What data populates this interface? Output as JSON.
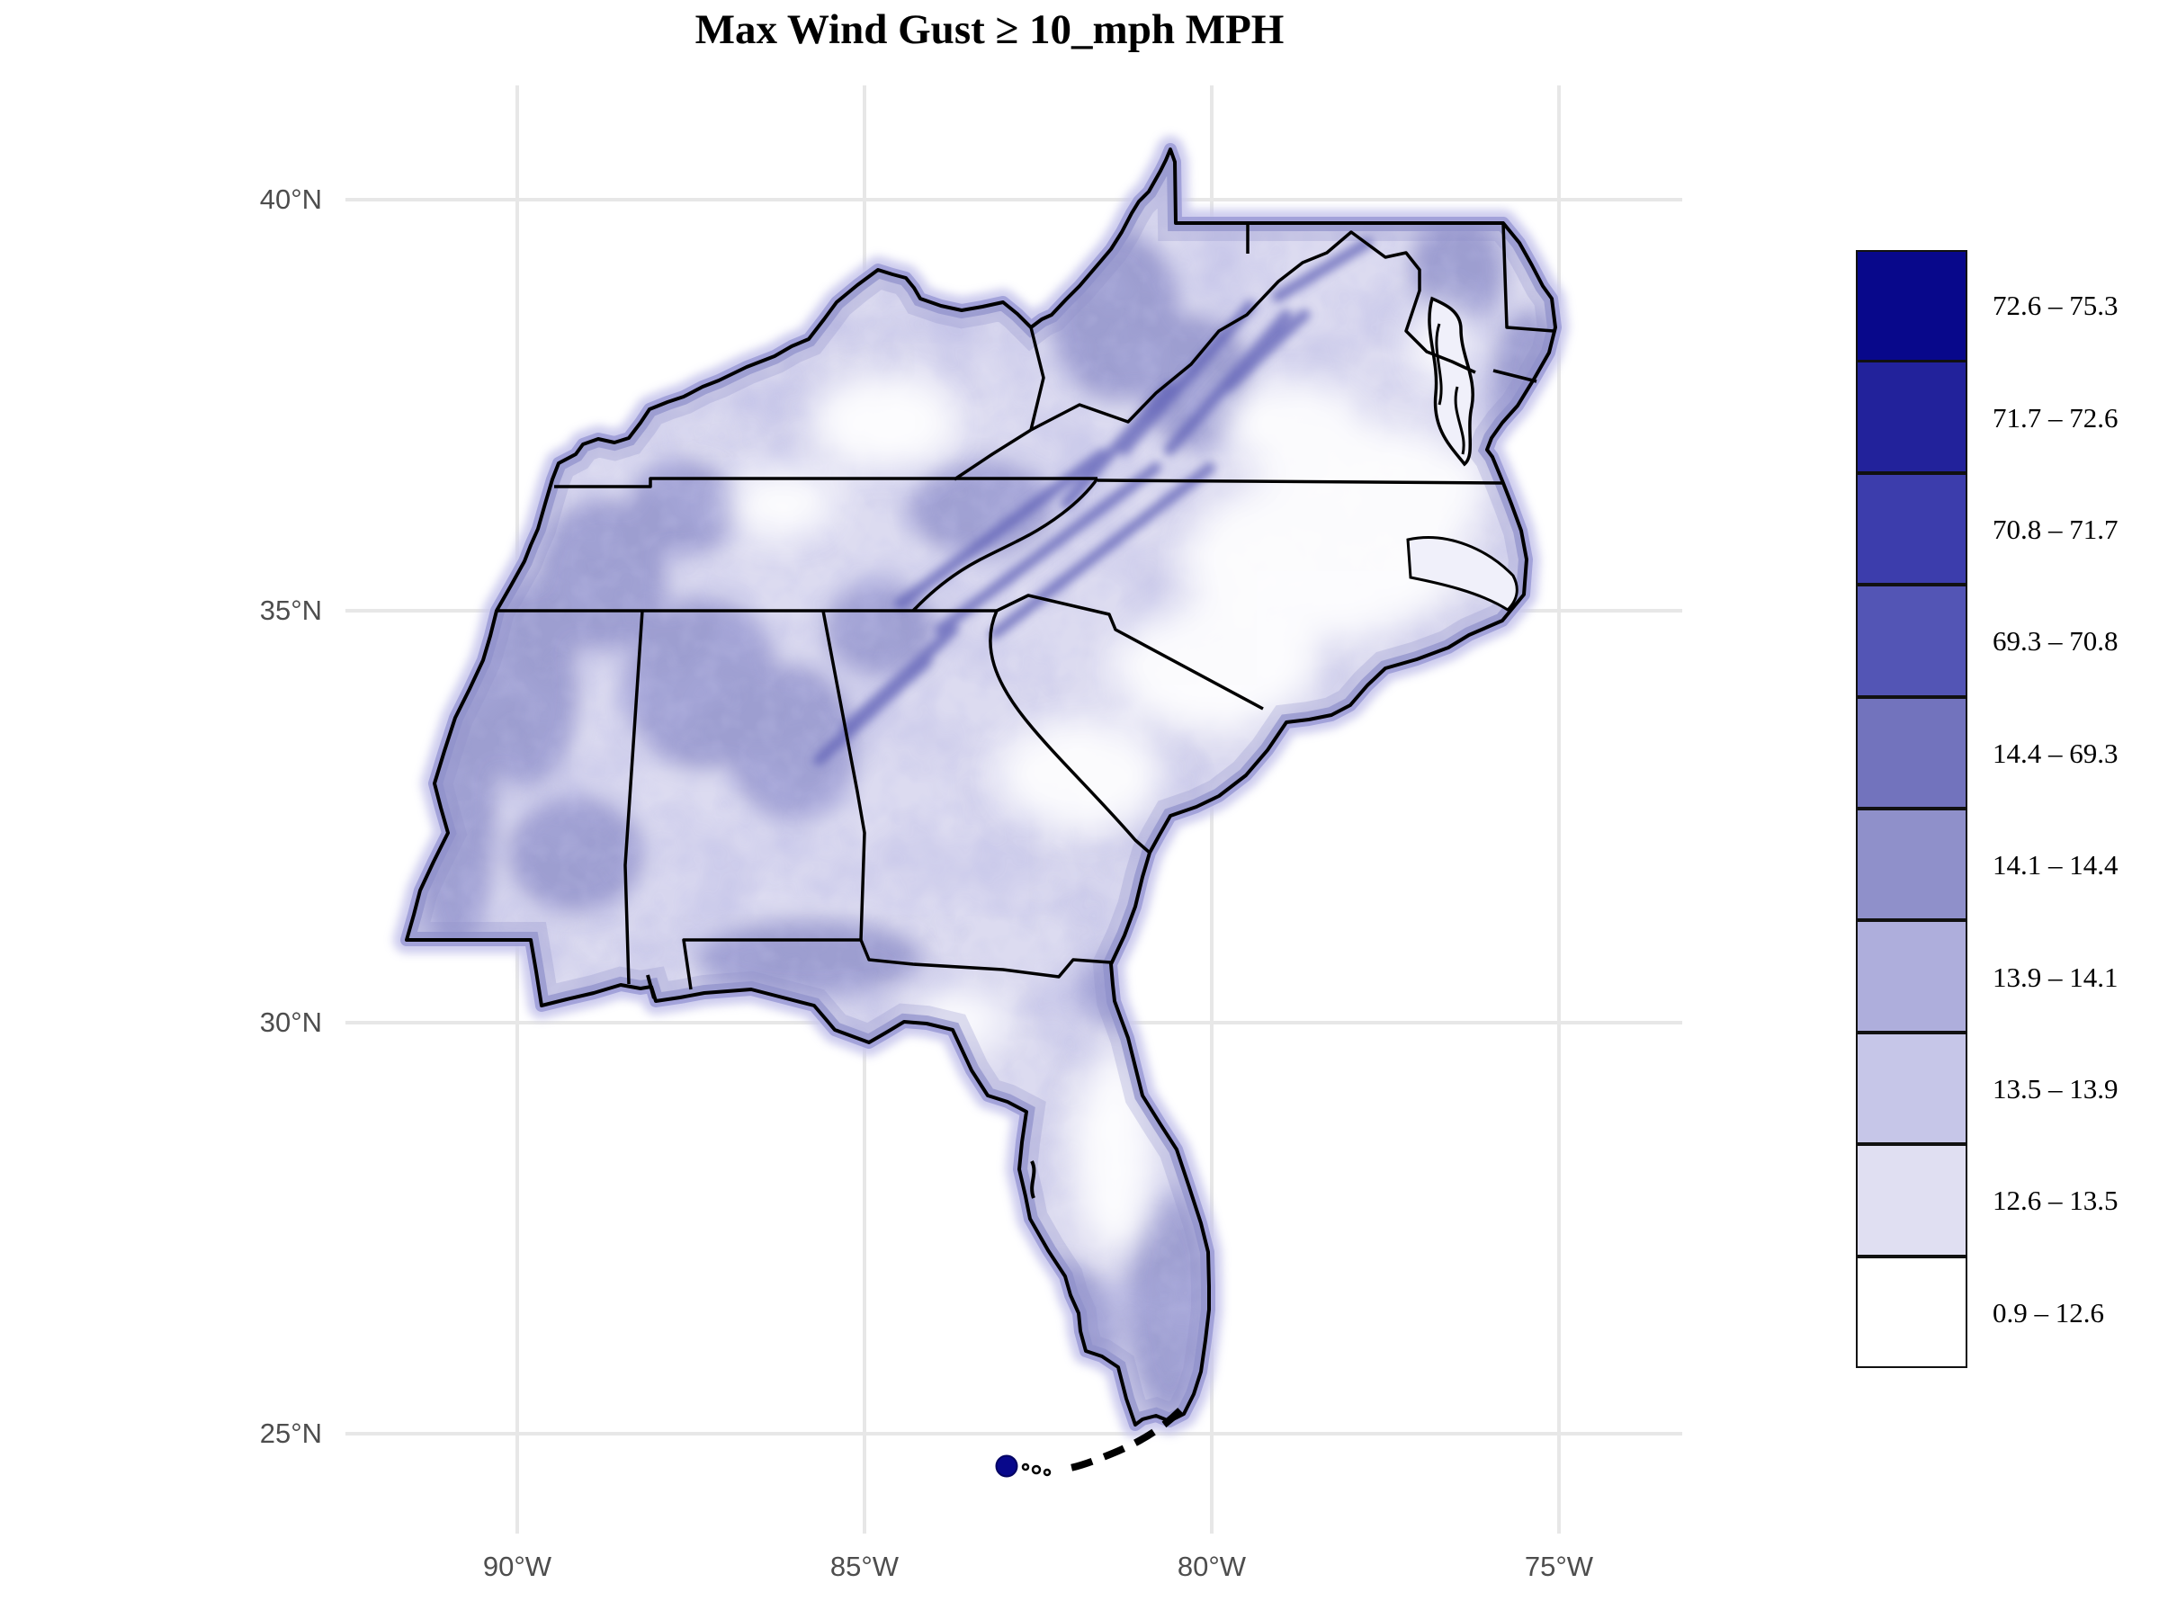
{
  "title": "Max Wind Gust ≥ 10_mph MPH",
  "axes": {
    "x_ticks": [
      {
        "label": "90°W",
        "px": 575
      },
      {
        "label": "85°W",
        "px": 961
      },
      {
        "label": "80°W",
        "px": 1347
      },
      {
        "label": "75°W",
        "px": 1733
      }
    ],
    "y_ticks": [
      {
        "label": "40°N",
        "px": 222
      },
      {
        "label": "35°N",
        "px": 679
      },
      {
        "label": "30°N",
        "px": 1137
      },
      {
        "label": "25°N",
        "px": 1594
      }
    ]
  },
  "legend": {
    "entries": [
      {
        "label": "72.6 – 75.3",
        "color": "#08088B"
      },
      {
        "label": "71.7 – 72.6",
        "color": "#22229B"
      },
      {
        "label": "70.8 – 71.7",
        "color": "#3C3DAC"
      },
      {
        "label": "69.3 – 70.8",
        "color": "#5355B5"
      },
      {
        "label": "14.4 – 69.3",
        "color": "#7273BD"
      },
      {
        "label": "14.1 – 14.4",
        "color": "#8F90CA"
      },
      {
        "label": "13.9 – 14.1",
        "color": "#AEAEDC"
      },
      {
        "label": "13.5 – 13.9",
        "color": "#C6C6E8"
      },
      {
        "label": "12.6 – 13.5",
        "color": "#E0DFF2"
      },
      {
        "label": "0.9 – 12.6",
        "color": "#FFFFFF"
      }
    ]
  },
  "map": {
    "region_name": "Southeastern United States",
    "gridline_color": "#E7E7E7",
    "land_base_color": "#DCDBF0",
    "coast_halo_outer": "#C7C6EC",
    "coast_halo_inner": "#9B9BD6",
    "state_border_color": "#000000",
    "max_point_color": "#08088B"
  },
  "chart_data": {
    "type": "heatmap",
    "title": "Max Wind Gust ≥ 10_mph MPH",
    "unit": "mph",
    "legend_position": "right",
    "grid": "on",
    "x_axis_ticks": [
      "90°W",
      "85°W",
      "80°W",
      "75°W"
    ],
    "y_axis_ticks": [
      "40°N",
      "35°N",
      "30°N",
      "25°N"
    ],
    "bins": [
      {
        "range": "72.6 – 75.3",
        "color": "#08088B"
      },
      {
        "range": "71.7 – 72.6",
        "color": "#22229B"
      },
      {
        "range": "70.8 – 71.7",
        "color": "#3C3DAC"
      },
      {
        "range": "69.3 – 70.8",
        "color": "#5355B5"
      },
      {
        "range": "14.4 – 69.3",
        "color": "#7273BD"
      },
      {
        "range": "14.1 – 14.4",
        "color": "#8F90CA"
      },
      {
        "range": "13.9 – 14.1",
        "color": "#AEAEDC"
      },
      {
        "range": "13.5 – 13.9",
        "color": "#C6C6E8"
      },
      {
        "range": "12.6 – 13.5",
        "color": "#E0DFF2"
      },
      {
        "range": "0.9 – 12.6",
        "color": "#FFFFFF"
      }
    ]
  }
}
